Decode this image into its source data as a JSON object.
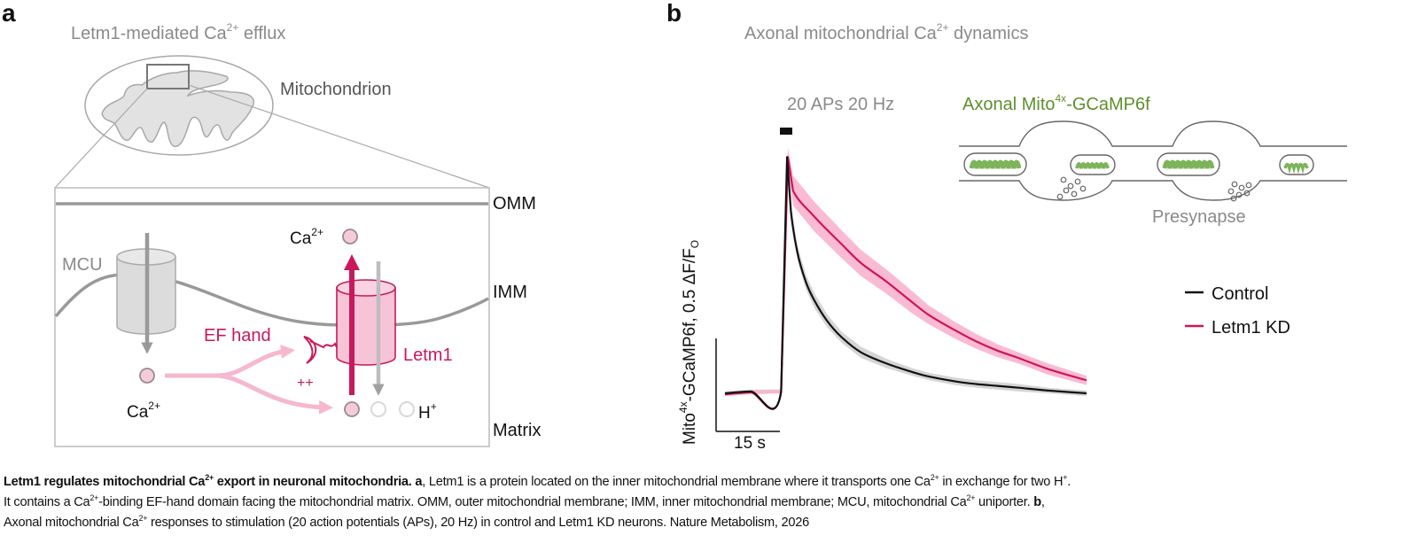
{
  "panel_a": {
    "label": "a",
    "title": {
      "pre": "Letm1-mediated Ca",
      "sup": "2+",
      "post": " efflux"
    },
    "mitochondrion_label": "Mitochondrion",
    "omm_label": "OMM",
    "imm_label": "IMM",
    "matrix_label": "Matrix",
    "mcu_label": "MCU",
    "ef_hand_label": "EF hand",
    "letm1_label": "Letm1",
    "plus_label": "++",
    "ca_top": {
      "base": "Ca",
      "sup": "2+"
    },
    "ca_left": {
      "base": "Ca",
      "sup": "2+"
    },
    "h_label": {
      "base": "H",
      "sup": "+"
    },
    "colors": {
      "letm1": "#c8195c",
      "letm1_fill": "#f7c3d6",
      "ca_flow": "#f5b8cf",
      "membrane": "#999999",
      "mcu_fill": "#dddddd"
    }
  },
  "panel_b": {
    "label": "b",
    "title": {
      "pre": "Axonal mitochondrial Ca",
      "sup": "2+",
      "post": " dynamics"
    },
    "stimulus_label": "20 APs 20 Hz",
    "inset_title": {
      "pre": "Axonal Mito",
      "sup": "4x",
      "post": "-GCaMP6f"
    },
    "inset_label": "Presynapse",
    "colors": {
      "inset_title": "#5e8f2c",
      "mito_fill": "#a9d48a"
    }
  },
  "chart_data": {
    "type": "line",
    "title": {
      "pre": "Axonal mitochondrial Ca",
      "sup": "2+",
      "post": " dynamics"
    },
    "ylabel": {
      "pre": "Mito",
      "sup": "4x",
      "mid": "-GCaMP6f, 0.5 ΔF/F",
      "sub": "O"
    },
    "xlabel": "",
    "scale_bars": {
      "x": {
        "value": 15,
        "unit": "s",
        "label": "15 s"
      },
      "y": {
        "value": 0.5,
        "unit": "ΔF/F0"
      }
    },
    "stimulus": {
      "label": "20 APs 20 Hz",
      "start_s": 13.3,
      "duration_s": 1.0
    },
    "axes_visible": false,
    "grid": false,
    "legend_position": "right",
    "series": [
      {
        "name": "Control",
        "color": "#111111",
        "band_color": "#d0d0d0",
        "x": [
          0,
          6,
          13.2,
          14.6,
          15.5,
          17,
          19,
          21,
          24,
          27.5,
          32,
          38,
          44,
          48,
          54,
          59,
          64,
          69,
          76,
          85
        ],
        "y": [
          0,
          0.01,
          0.01,
          1.27,
          0.98,
          0.76,
          0.6,
          0.5,
          0.39,
          0.3,
          0.22,
          0.16,
          0.115,
          0.09,
          0.065,
          0.05,
          0.04,
          0.03,
          0.015,
          0.0
        ],
        "err": [
          0.01,
          0.01,
          0.01,
          0.03,
          0.04,
          0.04,
          0.04,
          0.04,
          0.035,
          0.03,
          0.03,
          0.025,
          0.02,
          0.02,
          0.02,
          0.02,
          0.02,
          0.02,
          0.015,
          0.015
        ]
      },
      {
        "name": "Letm1 KD",
        "color": "#d0135c",
        "band_color": "#f8b4cd",
        "x": [
          0,
          6,
          13.2,
          14.8,
          16,
          21,
          27.5,
          32,
          38,
          44,
          48,
          54,
          59,
          64,
          69,
          76,
          85
        ],
        "y": [
          -0.005,
          0.005,
          0.01,
          1.27,
          1.09,
          0.95,
          0.8,
          0.7,
          0.6,
          0.49,
          0.42,
          0.34,
          0.28,
          0.23,
          0.19,
          0.13,
          0.07
        ],
        "err": [
          0.01,
          0.01,
          0.01,
          0.05,
          0.08,
          0.08,
          0.075,
          0.07,
          0.065,
          0.06,
          0.05,
          0.045,
          0.04,
          0.035,
          0.03,
          0.03,
          0.025
        ]
      }
    ]
  },
  "caption": {
    "lines": [
      [
        {
          "text": "Letm1 regulates mitochondrial Ca",
          "bold": true
        },
        {
          "text": "2+",
          "bold": true,
          "sup": true
        },
        {
          "text": " export in neuronal mitochondria. a",
          "bold": true
        },
        {
          "text": ", Letm1 is a protein located on the inner mitochondrial membrane where it transports one Ca"
        },
        {
          "text": "2+",
          "sup": true
        },
        {
          "text": " in exchange for two H"
        },
        {
          "text": "+",
          "sup": true
        },
        {
          "text": "."
        }
      ],
      [
        {
          "text": "It contains a Ca"
        },
        {
          "text": "2+",
          "sup": true
        },
        {
          "text": "-binding EF-hand domain facing the mitochondrial matrix. OMM, outer mitochondrial membrane; IMM, inner mitochondrial membrane; MCU, mitochondrial Ca"
        },
        {
          "text": "2+",
          "sup": true
        },
        {
          "text": " uniporter. "
        },
        {
          "text": "b",
          "bold": true
        },
        {
          "text": ","
        }
      ],
      [
        {
          "text": "Axonal mitochondrial Ca"
        },
        {
          "text": "2+",
          "sup": true
        },
        {
          "text": " responses to stimulation (20 action potentials (APs), 20 Hz) in control and Letm1 KD neurons. Nature Metabolism, 2026"
        }
      ]
    ]
  }
}
